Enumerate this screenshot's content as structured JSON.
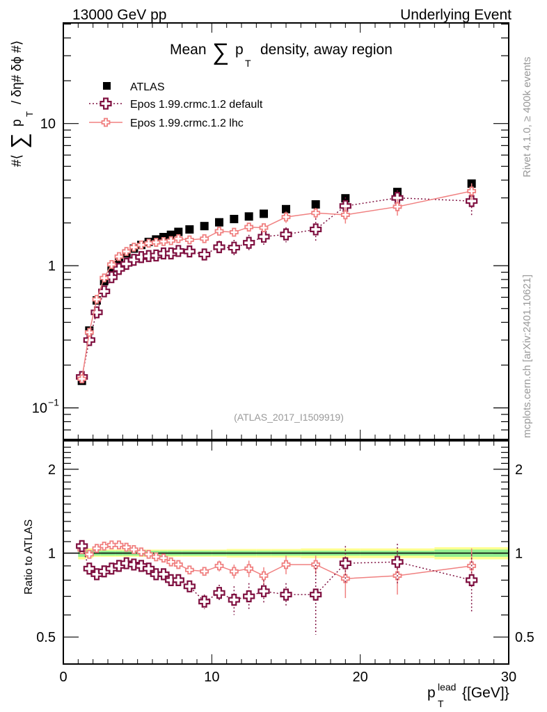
{
  "header": {
    "left": "13000 GeV pp",
    "right": "Underlying Event"
  },
  "side_labels": {
    "rivet": "Rivet 4.1.0, ≥ 400k events",
    "mcplots": "mcplots.cern.ch [arXiv:2401.10621]"
  },
  "watermark": "(ATLAS_2017_I1509919)",
  "colors": {
    "data": "#000000",
    "default": "#7f1040",
    "lhc": "#f08080",
    "band_inner": "#90ee90",
    "band_outer": "#ffff90"
  },
  "chart_data": [
    {
      "type": "scatter",
      "panel": "main",
      "title_parts": {
        "pre": "Mean",
        "sigma": "∑",
        "p": "p",
        "sub": "T",
        "post": "density, away region"
      },
      "ylabel": "#⟨ ∑ p_T / δη# δϕ #⟩",
      "ylabel_parts": {
        "pre": "#⟨",
        "sigma": "∑",
        "p": "p",
        "sub": "T",
        "post": "/ δη# δϕ #⟩"
      },
      "yscale": "log",
      "ylim": [
        0.06,
        51
      ],
      "yticks": [
        {
          "v": 0.1,
          "label": "10",
          "exp": "−1"
        },
        {
          "v": 1,
          "label": "1",
          "exp": ""
        },
        {
          "v": 10,
          "label": "10",
          "exp": ""
        }
      ],
      "xlim": [
        0,
        30
      ],
      "legend_position": "top-left",
      "x": [
        1.25,
        1.75,
        2.25,
        2.75,
        3.25,
        3.75,
        4.25,
        4.75,
        5.25,
        5.75,
        6.25,
        6.75,
        7.25,
        7.75,
        8.5,
        9.5,
        10.5,
        11.5,
        12.5,
        13.5,
        15,
        17,
        19,
        22.5,
        27.5
      ],
      "series": [
        {
          "name": "ATLAS",
          "style": "square",
          "values": [
            0.155,
            0.35,
            0.57,
            0.78,
            0.96,
            1.1,
            1.22,
            1.32,
            1.4,
            1.47,
            1.53,
            1.59,
            1.65,
            1.73,
            1.8,
            1.9,
            2.02,
            2.13,
            2.22,
            2.32,
            2.5,
            2.7,
            2.98,
            3.3,
            3.78
          ],
          "errors": [
            0,
            0,
            0,
            0,
            0,
            0,
            0,
            0,
            0,
            0,
            0,
            0,
            0,
            0,
            0,
            0,
            0,
            0,
            0,
            0,
            0,
            0,
            0,
            0.1,
            0.15
          ]
        },
        {
          "name": "Epos 1.99.crmc.1.2 default",
          "style": "open-cross-dotted",
          "values": [
            0.165,
            0.3,
            0.47,
            0.66,
            0.83,
            0.95,
            1.03,
            1.1,
            1.15,
            1.17,
            1.18,
            1.22,
            1.22,
            1.27,
            1.26,
            1.2,
            1.35,
            1.34,
            1.45,
            1.6,
            1.66,
            1.8,
            2.63,
            3.0,
            2.85
          ],
          "errors": [
            0,
            0,
            0,
            0,
            0,
            0,
            0,
            0,
            0,
            0,
            0,
            0,
            0,
            0,
            0,
            0.1,
            0.15,
            0.18,
            0.2,
            0.2,
            0.2,
            0.35,
            0.4,
            0.4,
            0.6
          ]
        },
        {
          "name": "Epos 1.99.crmc.1.2 lhc",
          "style": "open-cross-solid",
          "values": [
            0.16,
            0.34,
            0.58,
            0.82,
            1.02,
            1.16,
            1.26,
            1.35,
            1.4,
            1.44,
            1.46,
            1.48,
            1.5,
            1.55,
            1.52,
            1.55,
            1.75,
            1.72,
            1.87,
            1.85,
            2.2,
            2.35,
            2.28,
            2.6,
            3.35
          ],
          "errors": [
            0,
            0,
            0,
            0,
            0,
            0,
            0,
            0,
            0,
            0,
            0,
            0,
            0,
            0,
            0.05,
            0.06,
            0.08,
            0.1,
            0.12,
            0.12,
            0.2,
            0.2,
            0.3,
            0.35,
            0.45
          ]
        }
      ]
    },
    {
      "type": "scatter",
      "panel": "ratio",
      "ylabel": "Ratio to ATLAS",
      "xlabel": "p_T^lead {[GeV]}",
      "xlabel_parts": {
        "p": "p",
        "sub": "T",
        "sup": "lead",
        "post": "{[GeV]}"
      },
      "yscale": "log",
      "ylim": [
        0.4,
        2.53
      ],
      "yticks": [
        {
          "v": 0.5,
          "label": "0.5"
        },
        {
          "v": 1,
          "label": "1"
        },
        {
          "v": 2,
          "label": "2"
        }
      ],
      "xlim": [
        0,
        30
      ],
      "xticks": [
        {
          "v": 0,
          "label": "0"
        },
        {
          "v": 10,
          "label": "10"
        },
        {
          "v": 20,
          "label": "20"
        },
        {
          "v": 30,
          "label": "30"
        }
      ],
      "x": [
        1.25,
        1.75,
        2.25,
        2.75,
        3.25,
        3.75,
        4.25,
        4.75,
        5.25,
        5.75,
        6.25,
        6.75,
        7.25,
        7.75,
        8.5,
        9.5,
        10.5,
        11.5,
        12.5,
        13.5,
        15,
        17,
        19,
        22.5,
        27.5
      ],
      "band": {
        "x_edges": [
          1.0,
          1.5,
          2.0,
          2.5,
          3.0,
          3.5,
          4.0,
          4.5,
          5.0,
          5.5,
          6.0,
          6.5,
          7.0,
          7.5,
          8.0,
          9.0,
          10.0,
          11.0,
          12.0,
          13.0,
          14.0,
          16.0,
          18.0,
          20.0,
          25.0,
          30.0
        ],
        "inner": [
          0.03,
          0.025,
          0.02,
          0.02,
          0.02,
          0.02,
          0.02,
          0.02,
          0.02,
          0.02,
          0.02,
          0.02,
          0.02,
          0.02,
          0.02,
          0.02,
          0.02,
          0.02,
          0.02,
          0.02,
          0.02,
          0.02,
          0.02,
          0.02,
          0.03
        ],
        "outer": [
          0.05,
          0.04,
          0.03,
          0.03,
          0.03,
          0.03,
          0.03,
          0.03,
          0.03,
          0.03,
          0.03,
          0.03,
          0.03,
          0.03,
          0.03,
          0.03,
          0.03,
          0.035,
          0.035,
          0.035,
          0.035,
          0.04,
          0.04,
          0.04,
          0.05
        ]
      },
      "series": [
        {
          "name": "Epos 1.99.crmc.1.2 default",
          "style": "open-cross-dotted",
          "values": [
            1.06,
            0.88,
            0.84,
            0.86,
            0.88,
            0.9,
            0.92,
            0.91,
            0.9,
            0.88,
            0.84,
            0.84,
            0.8,
            0.8,
            0.76,
            0.67,
            0.72,
            0.68,
            0.7,
            0.73,
            0.71,
            0.71,
            0.92,
            0.93,
            0.8
          ],
          "errors": [
            0,
            0,
            0,
            0,
            0,
            0,
            0,
            0,
            0,
            0,
            0,
            0,
            0,
            0,
            0.02,
            0.04,
            0.05,
            0.08,
            0.08,
            0.07,
            0.07,
            0.2,
            0.14,
            0.15,
            0.19
          ]
        },
        {
          "name": "Epos 1.99.crmc.1.2 lhc",
          "style": "open-cross-solid",
          "values": [
            1.03,
            0.99,
            1.04,
            1.06,
            1.07,
            1.07,
            1.05,
            1.03,
            1.01,
            0.99,
            0.97,
            0.96,
            0.93,
            0.91,
            0.87,
            0.86,
            0.9,
            0.86,
            0.88,
            0.83,
            0.91,
            0.91,
            0.81,
            0.83,
            0.9
          ],
          "errors": [
            0,
            0,
            0,
            0,
            0,
            0,
            0,
            0,
            0,
            0,
            0,
            0,
            0,
            0,
            0.02,
            0.03,
            0.04,
            0.05,
            0.06,
            0.06,
            0.07,
            0.07,
            0.12,
            0.12,
            0.14
          ]
        }
      ]
    }
  ]
}
